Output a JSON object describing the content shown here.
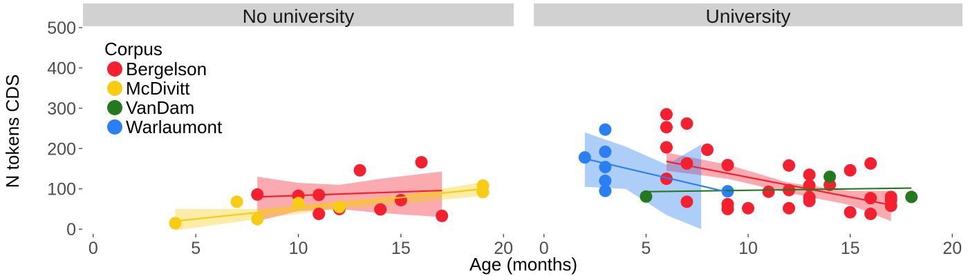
{
  "chart_data": {
    "type": "scatter",
    "xlabel": "Age (months)",
    "ylabel": "N tokens CDS",
    "xlim": [
      -0.5,
      20.5
    ],
    "ylim": [
      -10,
      500
    ],
    "x_ticks": [
      0,
      5,
      10,
      15,
      20
    ],
    "y_ticks": [
      0,
      100,
      200,
      300,
      400,
      500
    ],
    "grid": false,
    "legend": {
      "title": "Corpus",
      "placement": "inside-top-left",
      "entries": [
        {
          "name": "Bergelson",
          "color": "#f5202f"
        },
        {
          "name": "McDivitt",
          "color": "#f7cc12"
        },
        {
          "name": "VanDam",
          "color": "#237a1e"
        },
        {
          "name": "Warlaumont",
          "color": "#2a7ff2"
        }
      ]
    },
    "panels": [
      {
        "label": "No university",
        "series": [
          {
            "name": "Bergelson",
            "points": [
              [
                8,
                86
              ],
              [
                10,
                83
              ],
              [
                11,
                85
              ],
              [
                11,
                38
              ],
              [
                12,
                50
              ],
              [
                13,
                146
              ],
              [
                14,
                49
              ],
              [
                15,
                72
              ],
              [
                16,
                166
              ],
              [
                17,
                33
              ]
            ],
            "fit": {
              "x": [
                8,
                17
              ],
              "y": [
                80,
                96
              ]
            },
            "band": {
              "x": [
                8,
                10,
                12,
                14,
                17
              ],
              "lower": [
                20,
                45,
                50,
                40,
                30
              ],
              "upper": [
                130,
                115,
                110,
                125,
                143
              ]
            }
          },
          {
            "name": "McDivitt",
            "points": [
              [
                4,
                15
              ],
              [
                7,
                68
              ],
              [
                8,
                25
              ],
              [
                10,
                65
              ],
              [
                12,
                55
              ],
              [
                19,
                108
              ],
              [
                19,
                92
              ]
            ],
            "fit": {
              "x": [
                4,
                19
              ],
              "y": [
                20,
                100
              ]
            },
            "band": {
              "x": [
                4,
                8,
                11,
                15,
                19
              ],
              "lower": [
                -3,
                25,
                45,
                62,
                83
              ],
              "upper": [
                50,
                50,
                65,
                83,
                117
              ]
            }
          }
        ]
      },
      {
        "label": "University",
        "series": [
          {
            "name": "Bergelson",
            "points": [
              [
                6,
                285
              ],
              [
                6,
                253
              ],
              [
                6,
                203
              ],
              [
                6,
                125
              ],
              [
                7,
                262
              ],
              [
                7,
                163
              ],
              [
                7,
                68
              ],
              [
                8,
                197
              ],
              [
                9,
                159
              ],
              [
                9,
                62
              ],
              [
                9,
                50
              ],
              [
                10,
                52
              ],
              [
                11,
                93
              ],
              [
                12,
                158
              ],
              [
                12,
                97
              ],
              [
                12,
                52
              ],
              [
                13,
                135
              ],
              [
                13,
                108
              ],
              [
                13,
                79
              ],
              [
                13,
                70
              ],
              [
                14,
                110
              ],
              [
                15,
                146
              ],
              [
                15,
                42
              ],
              [
                16,
                163
              ],
              [
                16,
                77
              ],
              [
                16,
                38
              ],
              [
                17,
                80
              ],
              [
                17,
                72
              ],
              [
                17,
                58
              ]
            ],
            "fit": {
              "x": [
                6,
                17
              ],
              "y": [
                168,
                60
              ]
            },
            "band": {
              "x": [
                6,
                9,
                12,
                15,
                17
              ],
              "lower": [
                145,
                125,
                90,
                60,
                20
              ],
              "upper": [
                190,
                160,
                115,
                95,
                95
              ]
            }
          },
          {
            "name": "VanDam",
            "points": [
              [
                5,
                81
              ],
              [
                14,
                130
              ],
              [
                18,
                80
              ]
            ],
            "fit": {
              "x": [
                5,
                18
              ],
              "y": [
                93,
                102
              ]
            },
            "band": null
          },
          {
            "name": "Warlaumont",
            "points": [
              [
                2,
                178
              ],
              [
                3,
                247
              ],
              [
                3,
                192
              ],
              [
                3,
                154
              ],
              [
                3,
                120
              ],
              [
                3,
                95
              ],
              [
                9,
                94
              ]
            ],
            "fit": {
              "x": [
                2,
                9
              ],
              "y": [
                175,
                92
              ]
            },
            "band": {
              "x": [
                2,
                4,
                6,
                7.7
              ],
              "lower": [
                105,
                100,
                35,
                0
              ],
              "upper": [
                240,
                205,
                160,
                210
              ]
            }
          }
        ]
      }
    ]
  }
}
